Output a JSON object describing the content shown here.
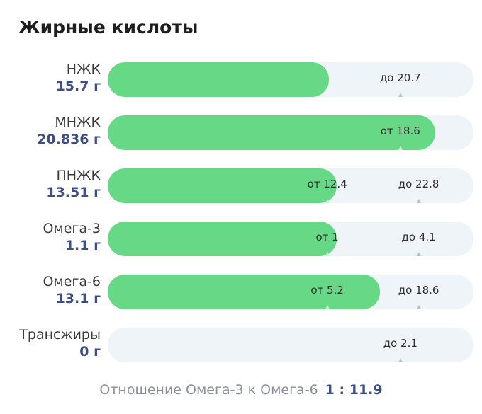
{
  "title": "Жирные кислоты",
  "rows": [
    {
      "name": "НЖК",
      "value": "15.7 г",
      "fill_fraction": 0.605,
      "markers": [
        {
          "text": "до 20.7",
          "at": 0.8
        }
      ]
    },
    {
      "name": "МНЖК",
      "value": "20.836 г",
      "fill_fraction": 0.895,
      "markers": [
        {
          "text": "от 18.6",
          "at": 0.8
        }
      ]
    },
    {
      "name": "ПНЖК",
      "value": "13.51 г",
      "fill_fraction": 0.625,
      "markers": [
        {
          "text": "от 12.4",
          "at": 0.6
        },
        {
          "text": "до 22.8",
          "at": 0.85
        }
      ]
    },
    {
      "name": "Омега-3",
      "value": "1.1 г",
      "fill_fraction": 0.625,
      "markers": [
        {
          "text": "от 1",
          "at": 0.6
        },
        {
          "text": "до 4.1",
          "at": 0.85
        }
      ]
    },
    {
      "name": "Омега-6",
      "value": "13.1 г",
      "fill_fraction": 0.745,
      "markers": [
        {
          "text": "от 5.2",
          "at": 0.6
        },
        {
          "text": "до 18.6",
          "at": 0.85
        }
      ]
    },
    {
      "name": "Трансжиры",
      "value": "0 г",
      "fill_fraction": 0,
      "markers": [
        {
          "text": "до 2.1",
          "at": 0.8
        }
      ]
    }
  ],
  "ratio": {
    "label": "Отношение Омега-3 к Омега-6",
    "value": "1 : 11.9"
  },
  "colors": {
    "fill": "#67d986",
    "track": "#eef4f7",
    "value_text": "#3f4f86"
  }
}
